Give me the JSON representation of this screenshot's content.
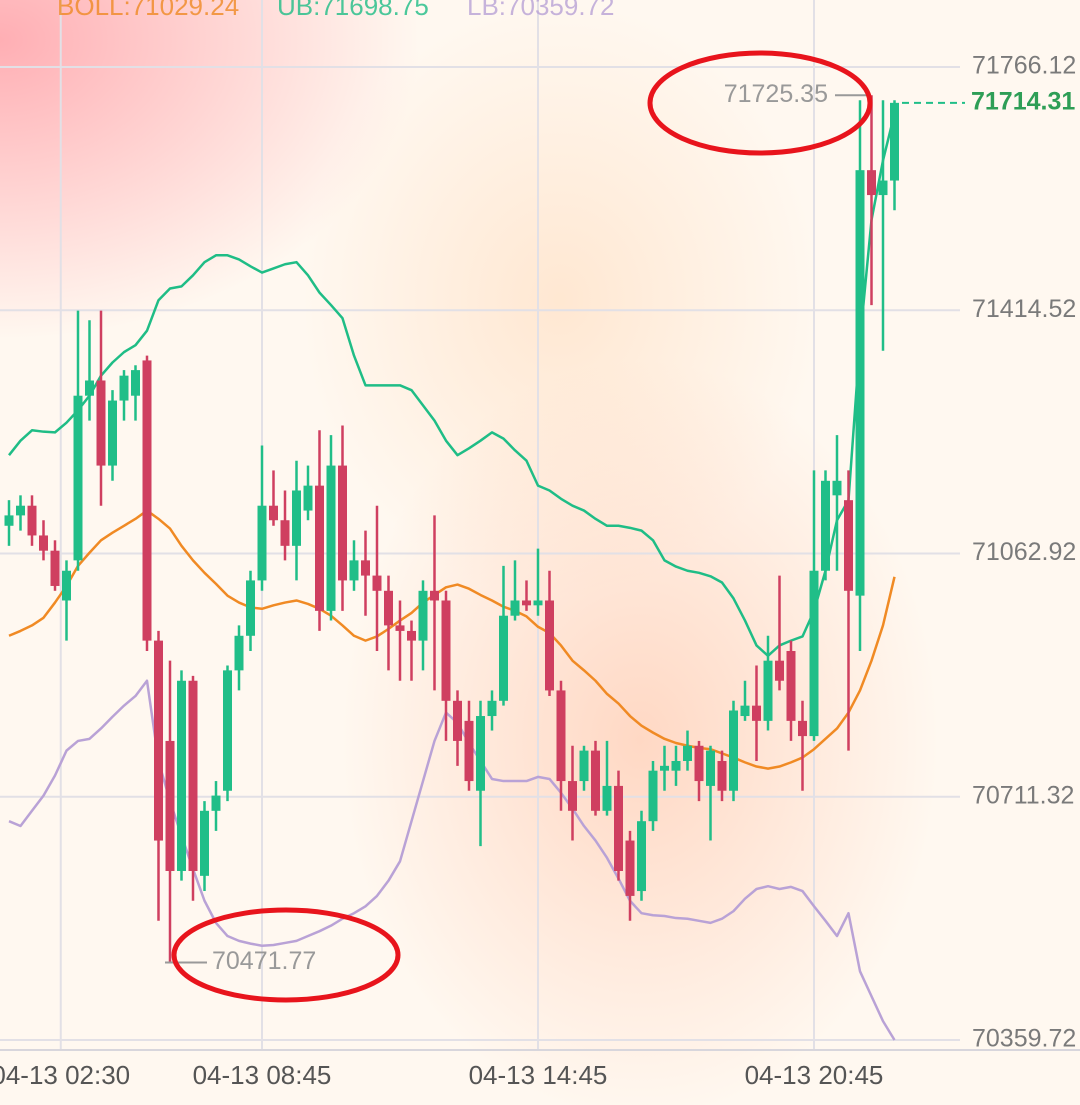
{
  "chart_data": {
    "type": "candlestick",
    "up_color": "#20be88",
    "down_color": "#cf3f60",
    "open": [
      71103,
      71118,
      71132,
      71089,
      71067,
      70995,
      71053,
      71291,
      71313,
      71190,
      71284,
      71291,
      71342,
      70937,
      70792,
      70604,
      70879,
      70597,
      70691,
      70720,
      70894,
      70944,
      71024,
      71132,
      71111,
      71074,
      71125,
      71161,
      70980,
      71190,
      71024,
      71053,
      71031,
      71009,
      70959,
      70951,
      70937,
      71009,
      70995,
      70850,
      70821,
      70720,
      70828,
      70850,
      70973,
      70995,
      70988,
      70995,
      70865,
      70734,
      70734,
      70778,
      70691,
      70727,
      70648,
      70575,
      70676,
      70749,
      70749,
      70763,
      70785,
      70727,
      70763,
      70720,
      70828,
      70843,
      70821,
      70908,
      70922,
      70821,
      70799,
      71038,
      71147,
      71140,
      71002,
      71617,
      71581,
      71602
    ],
    "high": [
      71140,
      71147,
      71147,
      71111,
      71082,
      71053,
      71414,
      71400,
      71414,
      71299,
      71328,
      71335,
      71349,
      70951,
      70908,
      70894,
      70886,
      70705,
      70734,
      70901,
      70959,
      71038,
      71219,
      71183,
      71154,
      71197,
      71190,
      71241,
      71234,
      71248,
      71082,
      71096,
      71132,
      71031,
      70995,
      70966,
      71024,
      71118,
      71009,
      70865,
      70850,
      70850,
      70865,
      71045,
      71053,
      71024,
      71070,
      71038,
      70879,
      70785,
      70785,
      70792,
      70792,
      70749,
      70662,
      70691,
      70763,
      70785,
      70785,
      70807,
      70792,
      70785,
      70778,
      70850,
      70879,
      70901,
      70944,
      71031,
      70937,
      70850,
      71183,
      71183,
      71234,
      71183,
      71718,
      71725.35,
      71718,
      71718
    ],
    "low": [
      71074,
      71096,
      71074,
      71053,
      71009,
      70937,
      71038,
      71255,
      71132,
      71168,
      71255,
      71255,
      70922,
      70532,
      70471.77,
      70590,
      70561,
      70575,
      70662,
      70705,
      70865,
      70922,
      71009,
      71103,
      71053,
      71024,
      71111,
      70951,
      70966,
      70980,
      71009,
      70973,
      70922,
      70894,
      70879,
      70879,
      70894,
      70865,
      70792,
      70756,
      70720,
      70640,
      70807,
      70843,
      70966,
      70980,
      70973,
      70857,
      70691,
      70648,
      70720,
      70684,
      70684,
      70590,
      70532,
      70561,
      70662,
      70720,
      70727,
      70749,
      70705,
      70648,
      70705,
      70705,
      70821,
      70763,
      70807,
      70865,
      70792,
      70720,
      70792,
      71024,
      71038,
      70778,
      70922,
      71422,
      71356,
      71559
    ],
    "close": [
      71118,
      71132,
      71089,
      71067,
      71016,
      71038,
      71291,
      71313,
      71190,
      71284,
      71320,
      71328,
      70937,
      70648,
      70604,
      70879,
      70604,
      70691,
      70713,
      70894,
      70944,
      71024,
      71132,
      71111,
      71074,
      71154,
      71161,
      70980,
      71190,
      71024,
      71053,
      71031,
      71009,
      70959,
      70951,
      70937,
      71009,
      70995,
      70850,
      70792,
      70734,
      70828,
      70850,
      70973,
      70995,
      70988,
      70995,
      70865,
      70734,
      70691,
      70778,
      70691,
      70727,
      70604,
      70568,
      70676,
      70749,
      70756,
      70763,
      70785,
      70734,
      70778,
      70720,
      70836,
      70843,
      70821,
      70908,
      70879,
      70821,
      70799,
      71038,
      71168,
      71168,
      71009,
      71617,
      71581,
      71602,
      71714.31
    ],
    "series": [
      {
        "name": "BOLL:71029.24",
        "color": "#f08a24",
        "values": [
          70944,
          70951,
          70959,
          70970,
          70992,
          71016,
          71045,
          71064,
          71082,
          71093,
          71103,
          71113,
          71125,
          71113,
          71099,
          71074,
          71053,
          71035,
          71019,
          71002,
          70992,
          70985,
          70983,
          70988,
          70992,
          70995,
          70990,
          70983,
          70973,
          70959,
          70944,
          70937,
          70943,
          70954,
          70966,
          70977,
          70992,
          71003,
          71014,
          71018,
          71012,
          71003,
          70995,
          70986,
          70980,
          70972,
          70957,
          70948,
          70930,
          70908,
          70894,
          70879,
          70860,
          70846,
          70828,
          70814,
          70804,
          70795,
          70789,
          70785,
          70782,
          70780,
          70774,
          70768,
          70761,
          70755,
          70752,
          70755,
          70761,
          70768,
          70780,
          70795,
          70810,
          70833,
          70865,
          70908,
          70959,
          71029.24
        ]
      },
      {
        "name": "UB:71698.75",
        "color": "#1fbd86",
        "values": [
          71205,
          71226,
          71241,
          71239,
          71238,
          71252,
          71270,
          71291,
          71320,
          71339,
          71354,
          71364,
          71385,
          71429,
          71446,
          71449,
          71465,
          71484,
          71494,
          71494,
          71488,
          71478,
          71469,
          71475,
          71481,
          71484,
          71465,
          71440,
          71422,
          71403,
          71349,
          71306,
          71306,
          71306,
          71306,
          71299,
          71277,
          71255,
          71226,
          71205,
          71215,
          71226,
          71238,
          71229,
          71212,
          71197,
          71161,
          71154,
          71142,
          71132,
          71125,
          71113,
          71103,
          71103,
          71100,
          71096,
          71082,
          71053,
          71044,
          71038,
          71035,
          71030,
          71021,
          70998,
          70966,
          70930,
          70915,
          70930,
          70937,
          70943,
          70980,
          71038,
          71111,
          71140,
          71371,
          71545,
          71631,
          71698.75
        ]
      },
      {
        "name": "LB:70359.72",
        "color": "#b9a2d6",
        "values": [
          70676,
          70669,
          70691,
          70713,
          70742,
          70778,
          70792,
          70795,
          70810,
          70827,
          70843,
          70857,
          70879,
          70763,
          70705,
          70655,
          70607,
          70561,
          70529,
          70510,
          70503,
          70499,
          70496,
          70497,
          70500,
          70503,
          70510,
          70517,
          70525,
          70535,
          70543,
          70553,
          70568,
          70590,
          70618,
          70676,
          70734,
          70792,
          70833,
          70818,
          70789,
          70763,
          70737,
          70734,
          70734,
          70734,
          70740,
          70737,
          70717,
          70694,
          70669,
          70648,
          70623,
          70593,
          70561,
          70543,
          70540,
          70539,
          70536,
          70535,
          70532,
          70529,
          70535,
          70546,
          70564,
          70578,
          70582,
          70578,
          70581,
          70575,
          70553,
          70532,
          70510,
          70543,
          70459,
          70423,
          70387,
          70359.72
        ]
      }
    ],
    "ylim": [
      70359.72,
      71766.12
    ],
    "yticks": [
      71766.12,
      71414.52,
      71062.92,
      70711.32,
      70359.72
    ],
    "xticks": [
      {
        "value": 4.5,
        "label": "04-13 02:30"
      },
      {
        "value": 22,
        "label": "04-13 08:45"
      },
      {
        "value": 46,
        "label": "04-13 14:45"
      },
      {
        "value": 70,
        "label": "04-13 20:45"
      }
    ],
    "grid": true,
    "max_label": 71725.35,
    "min_label": 70471.77,
    "last_price": 71714.31
  }
}
